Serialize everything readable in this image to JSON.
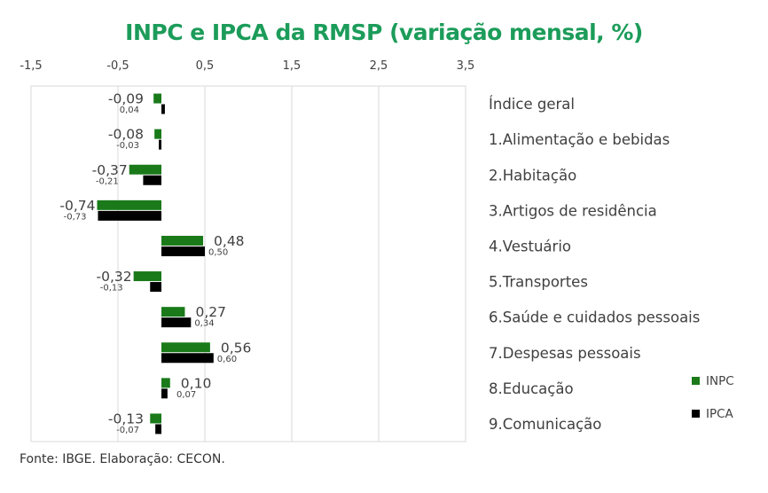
{
  "chart_data": {
    "type": "bar",
    "orientation": "horizontal",
    "title": "INPC e IPCA da RMSP (variação mensal, %)",
    "categories": [
      "Índice geral",
      "1.Alimentação e bebidas",
      "2.Habitação",
      "3.Artigos de residência",
      "4.Vestuário",
      "5.Transportes",
      "6.Saúde e cuidados pessoais",
      "7.Despesas pessoais",
      "8.Educação",
      "9.Comunicação"
    ],
    "series": [
      {
        "name": "INPC",
        "color": "#1a7a1a",
        "values": [
          -0.09,
          -0.08,
          -0.37,
          -0.74,
          0.48,
          -0.32,
          0.27,
          0.56,
          0.1,
          -0.13
        ],
        "labels": [
          "-0,09",
          "-0,08",
          "-0,37",
          "-0,74",
          "0,48",
          "-0,32",
          "0,27",
          "0,56",
          "0,10",
          "-0,13"
        ]
      },
      {
        "name": "IPCA",
        "color": "#000000",
        "values": [
          0.04,
          -0.03,
          -0.21,
          -0.73,
          0.5,
          -0.13,
          0.34,
          0.6,
          0.07,
          -0.07
        ],
        "labels": [
          "0,04",
          "-0,03",
          "-0,21",
          "-0,73",
          "0,50",
          "-0,13",
          "0,34",
          "0,60",
          "0,07",
          "-0,07"
        ]
      }
    ],
    "xlim": [
      -1.5,
      3.5
    ],
    "xticks": [
      -1.5,
      -0.5,
      0.5,
      1.5,
      2.5,
      3.5
    ],
    "xtick_labels": [
      "-1,5",
      "-0,5",
      "0,5",
      "1,5",
      "2,5",
      "3,5"
    ],
    "grid": true,
    "legend_position": "right"
  },
  "source": "Fonte: IBGE. Elaboração: CECON."
}
